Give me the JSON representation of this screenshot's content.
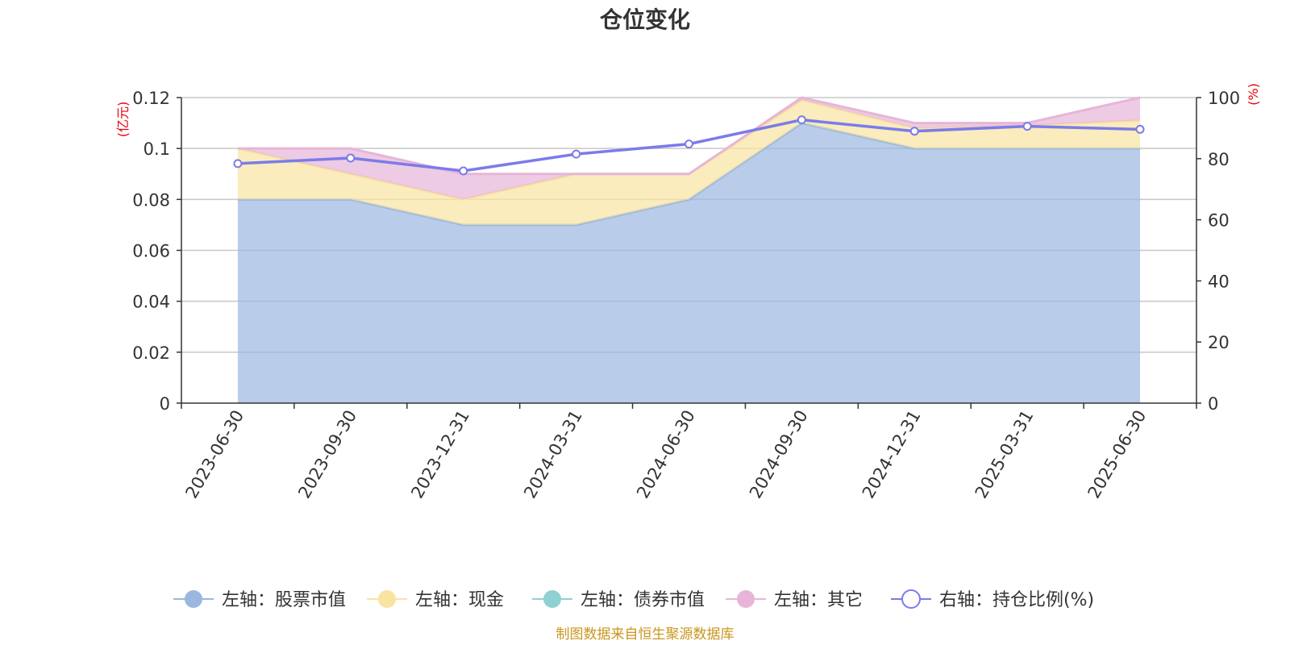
{
  "chart_data": {
    "type": "area",
    "title": "仓位变化",
    "categories": [
      "2023-06-30",
      "2023-09-30",
      "2023-12-31",
      "2024-03-31",
      "2024-06-30",
      "2024-09-30",
      "2024-12-31",
      "2025-03-31",
      "2025-06-30"
    ],
    "left_axis": {
      "unit": "(亿元)",
      "ylim": [
        0,
        0.12
      ],
      "ticks": [
        "0",
        "0.02",
        "0.04",
        "0.06",
        "0.08",
        "0.1",
        "0.12"
      ]
    },
    "right_axis": {
      "unit": "(%)",
      "ylim": [
        0,
        100
      ],
      "ticks": [
        "0",
        "20",
        "40",
        "60",
        "80",
        "100"
      ]
    },
    "grid": true,
    "legend_position": "bottom",
    "series": [
      {
        "name": "左轴：股票市值",
        "axis": "left",
        "type": "area",
        "color": "#9bb7e0",
        "values": [
          0.08,
          0.08,
          0.07,
          0.07,
          0.08,
          0.11,
          0.1,
          0.1,
          0.1
        ]
      },
      {
        "name": "左轴：现金",
        "axis": "left",
        "type": "area",
        "color": "#f8e4a0",
        "values": [
          0.02,
          0.01,
          0.01,
          0.02,
          0.01,
          0.009,
          0.008,
          0.009,
          0.011
        ]
      },
      {
        "name": "左轴：债券市值",
        "axis": "left",
        "type": "area",
        "color": "#8fd1d1",
        "values": [
          0,
          0,
          0,
          0,
          0,
          0,
          0,
          0,
          0
        ]
      },
      {
        "name": "左轴：其它",
        "axis": "left",
        "type": "area",
        "color": "#e7b5d8",
        "values": [
          0.0,
          0.01,
          0.01,
          0.0,
          0.0,
          0.001,
          0.002,
          0.001,
          0.009
        ]
      },
      {
        "name": "右轴：持仓比例(%)",
        "axis": "right",
        "type": "line",
        "color": "#7b7bea",
        "values": [
          78.4,
          80.2,
          76.0,
          81.5,
          84.8,
          92.7,
          89.0,
          90.6,
          89.6
        ]
      }
    ],
    "source": "制图数据来自恒生聚源数据库"
  }
}
